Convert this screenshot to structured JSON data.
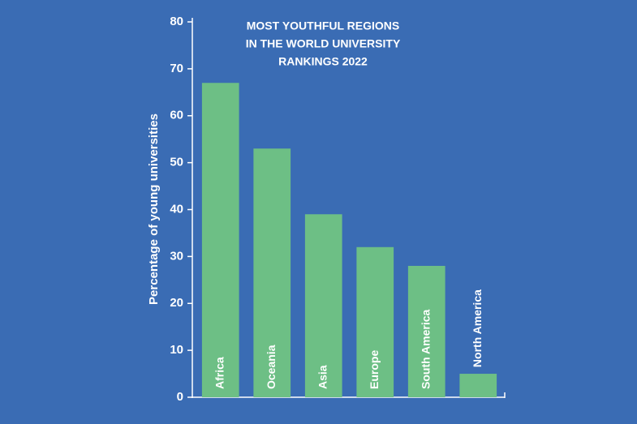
{
  "chart_data": {
    "type": "bar",
    "title": [
      "MOST YOUTHFUL REGIONS",
      "IN THE WORLD UNIVERSITY",
      "RANKINGS 2022"
    ],
    "y_label": "Percentage of young universities",
    "categories": [
      "Africa",
      "Oceania",
      "Asia",
      "Europe",
      "South America",
      "North America"
    ],
    "values": [
      67,
      53,
      39,
      32,
      28,
      5
    ],
    "color": "#6dbf85",
    "ylim": [
      0,
      80
    ],
    "yticks": [
      0,
      10,
      20,
      30,
      40,
      50,
      60,
      70,
      80
    ],
    "grid": false
  }
}
